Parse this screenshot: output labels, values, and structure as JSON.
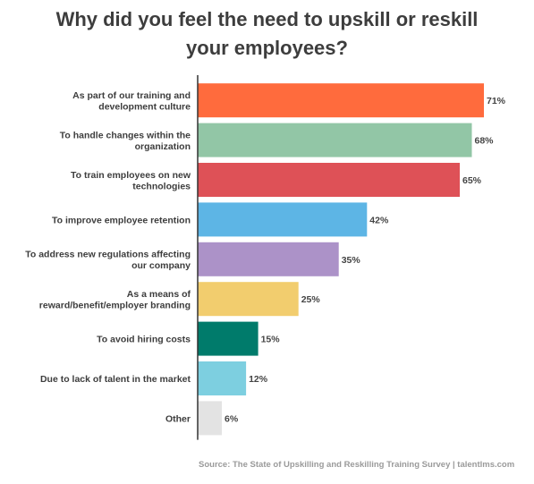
{
  "title": {
    "line1": "Why did you feel the need to upskill or reskill",
    "line2": "your employees?"
  },
  "source": "Source: The State of Upskilling and Reskilling Training Survey  |  talentlms.com",
  "chart_data": {
    "type": "bar",
    "orientation": "horizontal",
    "title": "Why did you feel the need to upskill or reskill your employees?",
    "value_suffix": "%",
    "xlim": [
      0,
      71
    ],
    "grid": false,
    "categories": [
      [
        "As part of our training and",
        "development culture"
      ],
      [
        "To handle changes within the",
        "organization"
      ],
      [
        "To train employees on new",
        "technologies"
      ],
      [
        "To improve employee retention"
      ],
      [
        "To address new regulations affecting",
        "our company"
      ],
      [
        "As a means of",
        "reward/benefit/employer branding"
      ],
      [
        "To avoid hiring costs"
      ],
      [
        "Due to lack of talent in the market"
      ],
      [
        "Other"
      ]
    ],
    "values": [
      71,
      68,
      65,
      42,
      35,
      25,
      15,
      12,
      6
    ],
    "colors": [
      "#FF6B3D",
      "#92C6A6",
      "#DE5157",
      "#5DB5E5",
      "#AC92C8",
      "#F2CD6E",
      "#007B6B",
      "#7DCFE0",
      "#E3E3E3"
    ]
  }
}
